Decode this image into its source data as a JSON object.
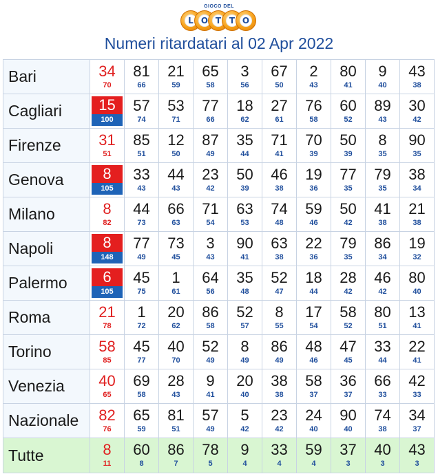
{
  "logo": {
    "sub": "GIOCO DEL",
    "letters": [
      "L",
      "O",
      "T",
      "T",
      "O"
    ]
  },
  "title": "Numeri ritardatari al 02 Apr 2022",
  "rows": [
    {
      "city": "Bari",
      "hl": false,
      "cells": [
        [
          "34",
          "70"
        ],
        [
          "81",
          "66"
        ],
        [
          "21",
          "59"
        ],
        [
          "65",
          "58"
        ],
        [
          "3",
          "56"
        ],
        [
          "67",
          "50"
        ],
        [
          "2",
          "43"
        ],
        [
          "80",
          "41"
        ],
        [
          "9",
          "40"
        ],
        [
          "43",
          "38"
        ]
      ]
    },
    {
      "city": "Cagliari",
      "hl": true,
      "cells": [
        [
          "15",
          "100"
        ],
        [
          "57",
          "74"
        ],
        [
          "53",
          "71"
        ],
        [
          "77",
          "66"
        ],
        [
          "18",
          "62"
        ],
        [
          "27",
          "61"
        ],
        [
          "76",
          "58"
        ],
        [
          "60",
          "52"
        ],
        [
          "89",
          "43"
        ],
        [
          "30",
          "42"
        ]
      ]
    },
    {
      "city": "Firenze",
      "hl": false,
      "cells": [
        [
          "31",
          "51"
        ],
        [
          "85",
          "51"
        ],
        [
          "12",
          "50"
        ],
        [
          "87",
          "49"
        ],
        [
          "35",
          "44"
        ],
        [
          "71",
          "41"
        ],
        [
          "70",
          "39"
        ],
        [
          "50",
          "39"
        ],
        [
          "8",
          "35"
        ],
        [
          "90",
          "35"
        ]
      ]
    },
    {
      "city": "Genova",
      "hl": true,
      "cells": [
        [
          "8",
          "105"
        ],
        [
          "33",
          "43"
        ],
        [
          "44",
          "43"
        ],
        [
          "23",
          "42"
        ],
        [
          "50",
          "39"
        ],
        [
          "46",
          "38"
        ],
        [
          "19",
          "36"
        ],
        [
          "77",
          "35"
        ],
        [
          "79",
          "35"
        ],
        [
          "38",
          "34"
        ]
      ]
    },
    {
      "city": "Milano",
      "hl": false,
      "cells": [
        [
          "8",
          "82"
        ],
        [
          "44",
          "73"
        ],
        [
          "66",
          "63"
        ],
        [
          "71",
          "54"
        ],
        [
          "63",
          "53"
        ],
        [
          "74",
          "48"
        ],
        [
          "59",
          "46"
        ],
        [
          "50",
          "42"
        ],
        [
          "41",
          "38"
        ],
        [
          "21",
          "38"
        ]
      ]
    },
    {
      "city": "Napoli",
      "hl": true,
      "cells": [
        [
          "8",
          "148"
        ],
        [
          "77",
          "49"
        ],
        [
          "73",
          "45"
        ],
        [
          "3",
          "43"
        ],
        [
          "90",
          "41"
        ],
        [
          "63",
          "38"
        ],
        [
          "22",
          "36"
        ],
        [
          "79",
          "35"
        ],
        [
          "86",
          "34"
        ],
        [
          "19",
          "32"
        ]
      ]
    },
    {
      "city": "Palermo",
      "hl": true,
      "cells": [
        [
          "6",
          "105"
        ],
        [
          "45",
          "75"
        ],
        [
          "1",
          "61"
        ],
        [
          "64",
          "56"
        ],
        [
          "35",
          "48"
        ],
        [
          "52",
          "47"
        ],
        [
          "18",
          "44"
        ],
        [
          "28",
          "42"
        ],
        [
          "46",
          "42"
        ],
        [
          "80",
          "40"
        ]
      ]
    },
    {
      "city": "Roma",
      "hl": false,
      "cells": [
        [
          "21",
          "78"
        ],
        [
          "1",
          "72"
        ],
        [
          "20",
          "62"
        ],
        [
          "86",
          "58"
        ],
        [
          "52",
          "57"
        ],
        [
          "8",
          "55"
        ],
        [
          "17",
          "54"
        ],
        [
          "58",
          "52"
        ],
        [
          "80",
          "51"
        ],
        [
          "13",
          "41"
        ]
      ]
    },
    {
      "city": "Torino",
      "hl": false,
      "cells": [
        [
          "58",
          "85"
        ],
        [
          "45",
          "77"
        ],
        [
          "40",
          "70"
        ],
        [
          "52",
          "49"
        ],
        [
          "8",
          "49"
        ],
        [
          "86",
          "49"
        ],
        [
          "48",
          "46"
        ],
        [
          "47",
          "45"
        ],
        [
          "33",
          "44"
        ],
        [
          "22",
          "41"
        ]
      ]
    },
    {
      "city": "Venezia",
      "hl": false,
      "cells": [
        [
          "40",
          "65"
        ],
        [
          "69",
          "58"
        ],
        [
          "28",
          "43"
        ],
        [
          "9",
          "41"
        ],
        [
          "20",
          "40"
        ],
        [
          "38",
          "38"
        ],
        [
          "58",
          "37"
        ],
        [
          "36",
          "37"
        ],
        [
          "66",
          "33"
        ],
        [
          "42",
          "33"
        ]
      ]
    },
    {
      "city": "Nazionale",
      "hl": false,
      "cells": [
        [
          "82",
          "76"
        ],
        [
          "65",
          "59"
        ],
        [
          "81",
          "51"
        ],
        [
          "57",
          "49"
        ],
        [
          "5",
          "42"
        ],
        [
          "23",
          "42"
        ],
        [
          "24",
          "40"
        ],
        [
          "90",
          "40"
        ],
        [
          "74",
          "38"
        ],
        [
          "34",
          "37"
        ]
      ]
    },
    {
      "city": "Tutte",
      "hl": false,
      "total": true,
      "cells": [
        [
          "8",
          "11"
        ],
        [
          "60",
          "8"
        ],
        [
          "86",
          "7"
        ],
        [
          "78",
          "5"
        ],
        [
          "9",
          "4"
        ],
        [
          "33",
          "4"
        ],
        [
          "59",
          "4"
        ],
        [
          "37",
          "3"
        ],
        [
          "40",
          "3"
        ],
        [
          "43",
          "3"
        ]
      ]
    }
  ],
  "colors": {
    "accent_red": "#e41f1f",
    "accent_blue": "#1f4e9c",
    "total_row_bg": "#d9f6d2",
    "city_bg": "#f3f8fd"
  }
}
